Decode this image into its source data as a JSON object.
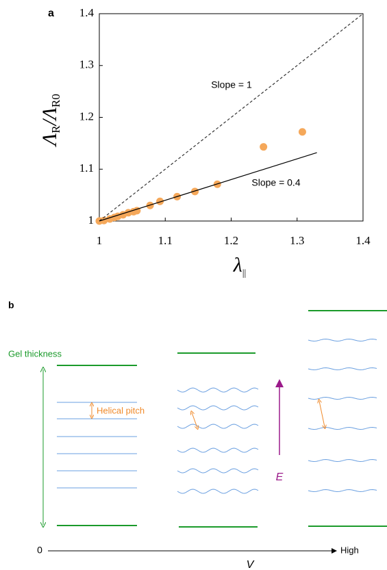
{
  "chart_data": {
    "type": "scatter",
    "panel_label": "a",
    "xlabel": [
      "λ",
      "||"
    ],
    "ylabel": [
      "Λ",
      "R",
      "/Λ",
      "R0"
    ],
    "xlim": [
      1,
      1.4
    ],
    "ylim": [
      1,
      1.4
    ],
    "xticks": [
      1,
      1.1,
      1.2,
      1.3,
      1.4
    ],
    "yticks": [
      1,
      1.1,
      1.2,
      1.3,
      1.4
    ],
    "series": [
      {
        "color": "#f5a85a",
        "x": [
          1.0,
          1.007,
          1.016,
          1.023,
          1.028,
          1.036,
          1.044,
          1.052,
          1.057,
          1.077,
          1.092,
          1.118,
          1.145,
          1.179,
          1.249,
          1.308
        ],
        "values": [
          1.0,
          1.001,
          1.004,
          1.007,
          1.009,
          1.012,
          1.016,
          1.018,
          1.02,
          1.03,
          1.038,
          1.047,
          1.057,
          1.071,
          1.143,
          1.172
        ]
      },
      {
        "type": "line",
        "style": "dashed",
        "color": "#333333",
        "x": [
          1,
          1.4
        ],
        "values": [
          1,
          1.4
        ]
      },
      {
        "type": "line",
        "style": "solid",
        "color": "#000000",
        "x": [
          1,
          1.33
        ],
        "values": [
          1,
          1.132
        ]
      }
    ],
    "annotations": [
      "Slope = 1",
      "Slope = 0.4"
    ]
  },
  "diagram": {
    "panel_label": "b",
    "gel_thickness": "Gel thickness",
    "helical_pitch": "Helical pitch",
    "field": "E",
    "axis_start": "0",
    "axis_end": "High",
    "axis_label": "V"
  }
}
